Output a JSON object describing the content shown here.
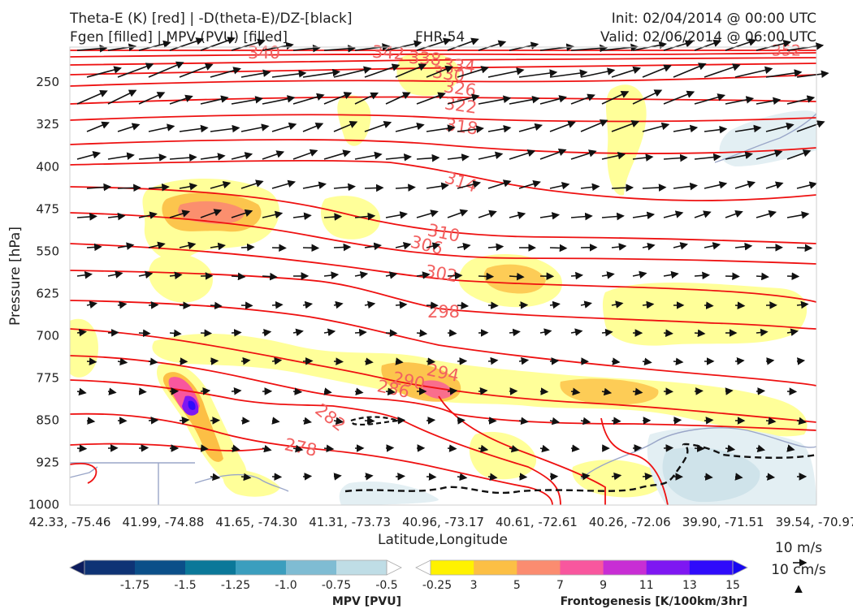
{
  "header": {
    "title_line1": "Theta-E (K) [red] | -D(theta-E)/DZ-[black]",
    "title_line2": "Fgen [filled] | MPV (PVU) [filled]",
    "fhr": "FHR:54",
    "init": "Init: 02/04/2014 @ 00:00 UTC",
    "valid": "Valid: 02/06/2014 @ 06:00 UTC"
  },
  "chart_data": {
    "type": "cross-section",
    "xlabel": "Latitude,Longitude",
    "ylabel": "Pressure [hPa]",
    "y_ticks": [
      250,
      325,
      400,
      475,
      550,
      625,
      700,
      775,
      850,
      925,
      1000
    ],
    "y_range_hpa": [
      187,
      1000
    ],
    "y_inverted": true,
    "x_ticks": [
      "42.33, -75.46",
      "41.99, -74.88",
      "41.65, -74.30",
      "41.31, -73.73",
      "40.96, -73.17",
      "40.61, -72.61",
      "40.26, -72.06",
      "39.90, -71.51",
      "39.54, -70.97"
    ],
    "theta_e_contours": {
      "color": "#ee1111",
      "levels_labeled": [
        340,
        342,
        338,
        334,
        330,
        326,
        322,
        318,
        314,
        310,
        306,
        302,
        298,
        294,
        290,
        286,
        282,
        278
      ],
      "top_right_label": "352"
    },
    "wind_vectors": {
      "color": "#111111",
      "reference": "10 m/s",
      "reference_vertical": "10 cm/s"
    },
    "fgen_colorbar": {
      "label": "Frontogenesis [K/100km/3hr]",
      "ticks": [
        "3",
        "5",
        "7",
        "9",
        "11",
        "13",
        "15"
      ],
      "colors": [
        "#ffffff",
        "#fff200",
        "#fcbf45",
        "#fb8c70",
        "#f8579e",
        "#c82ed4",
        "#7e17f2",
        "#2f0bfb",
        "#1808f0"
      ]
    },
    "mpv_colorbar": {
      "label": "MPV [PVU]",
      "ticks": [
        "-1.75",
        "-1.5",
        "-1.25",
        "-1.0",
        "-0.75",
        "-0.5",
        "-0.25"
      ],
      "colors": [
        "#0d1d5e",
        "#0e3375",
        "#0b4f89",
        "#0b7899",
        "#3b9ebe",
        "#7fbcd3",
        "#bfdde6",
        "#ffffff"
      ]
    },
    "grid": false
  }
}
